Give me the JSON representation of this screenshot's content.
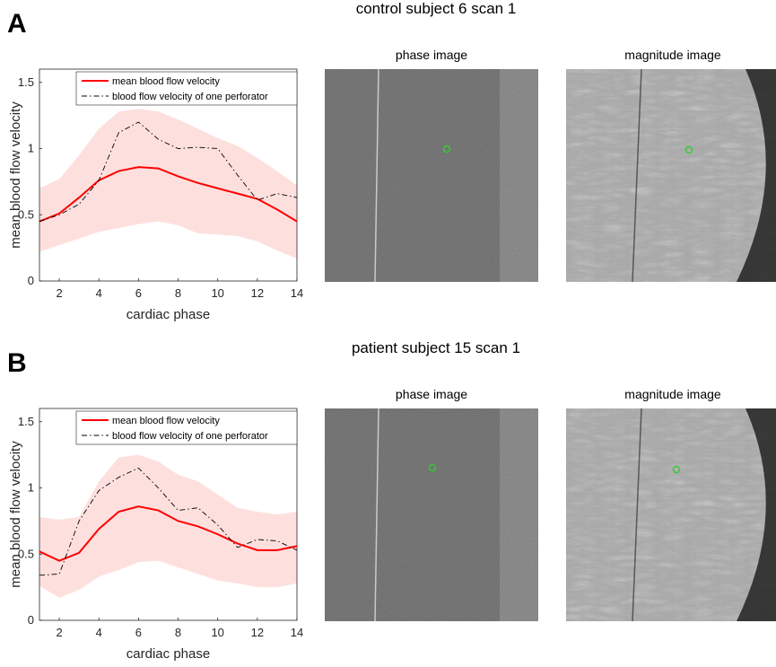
{
  "panels": [
    {
      "label": "A",
      "title": "control subject 6 scan 1",
      "image_titles": [
        "phase image",
        "magnitude image"
      ]
    },
    {
      "label": "B",
      "title": "patient subject 15 scan 1",
      "image_titles": [
        "phase image",
        "magnitude image"
      ]
    }
  ],
  "chart_data": [
    {
      "type": "line",
      "x_label": "cardiac phase",
      "y_label": "mean blood flow velocity",
      "x": [
        1,
        2,
        3,
        4,
        5,
        6,
        7,
        8,
        9,
        10,
        11,
        12,
        13,
        14
      ],
      "xlim": [
        1,
        14
      ],
      "xticks": [
        2,
        4,
        6,
        8,
        10,
        12,
        14
      ],
      "ylim": [
        0,
        1.6
      ],
      "yticks": [
        0,
        0.5,
        1,
        1.5
      ],
      "legend": "top-left",
      "band": {
        "color": "#fde0de",
        "upper": [
          0.7,
          0.77,
          0.95,
          1.15,
          1.28,
          1.3,
          1.28,
          1.22,
          1.15,
          1.08,
          1.02,
          0.93,
          0.83,
          0.72
        ],
        "lower": [
          0.22,
          0.27,
          0.32,
          0.37,
          0.4,
          0.43,
          0.45,
          0.42,
          0.36,
          0.35,
          0.34,
          0.3,
          0.23,
          0.17
        ]
      },
      "series": [
        {
          "name": "mean blood flow velocity",
          "color": "#ff0000",
          "linestyle": "solid",
          "values": [
            0.45,
            0.51,
            0.63,
            0.76,
            0.83,
            0.86,
            0.85,
            0.79,
            0.74,
            0.7,
            0.66,
            0.62,
            0.54,
            0.45
          ]
        },
        {
          "name": "blood flow velocity of one perforator",
          "color": "#000000",
          "linestyle": "dashdot",
          "values": [
            0.45,
            0.5,
            0.58,
            0.76,
            1.12,
            1.2,
            1.07,
            1.0,
            1.01,
            1.0,
            0.8,
            0.61,
            0.66,
            0.63
          ]
        }
      ]
    },
    {
      "type": "line",
      "x_label": "cardiac phase",
      "y_label": "mean blood flow velocity",
      "x": [
        1,
        2,
        3,
        4,
        5,
        6,
        7,
        8,
        9,
        10,
        11,
        12,
        13,
        14
      ],
      "xlim": [
        1,
        14
      ],
      "xticks": [
        2,
        4,
        6,
        8,
        10,
        12,
        14
      ],
      "ylim": [
        0,
        1.6
      ],
      "yticks": [
        0,
        0.5,
        1,
        1.5
      ],
      "legend": "top-left",
      "band": {
        "color": "#fde0de",
        "upper": [
          0.78,
          0.76,
          0.78,
          1.05,
          1.23,
          1.25,
          1.2,
          1.1,
          1.05,
          0.95,
          0.85,
          0.82,
          0.8,
          0.82
        ],
        "lower": [
          0.26,
          0.17,
          0.23,
          0.33,
          0.38,
          0.44,
          0.45,
          0.4,
          0.35,
          0.3,
          0.28,
          0.25,
          0.25,
          0.28
        ]
      },
      "series": [
        {
          "name": "mean blood flow velocity",
          "color": "#ff0000",
          "linestyle": "solid",
          "values": [
            0.52,
            0.45,
            0.51,
            0.69,
            0.82,
            0.86,
            0.83,
            0.75,
            0.71,
            0.65,
            0.58,
            0.53,
            0.53,
            0.56
          ]
        },
        {
          "name": "blood flow velocity of one perforator",
          "color": "#000000",
          "linestyle": "dashdot",
          "values": [
            0.34,
            0.35,
            0.75,
            0.98,
            1.08,
            1.15,
            1.0,
            0.83,
            0.85,
            0.72,
            0.55,
            0.61,
            0.6,
            0.53
          ]
        }
      ]
    }
  ]
}
